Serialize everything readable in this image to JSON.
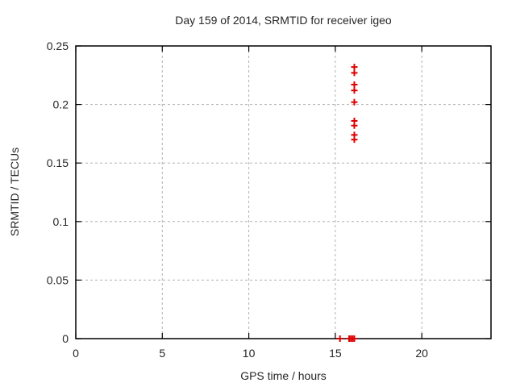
{
  "chart_data": {
    "type": "scatter",
    "title": "Day 159 of 2014, SRMTID for receiver igeo",
    "xlabel": "GPS time / hours",
    "ylabel": "SRMTID / TECUs",
    "xlim": [
      0,
      24
    ],
    "ylim": [
      0,
      0.25
    ],
    "xticks": [
      0,
      5,
      10,
      15,
      20
    ],
    "xtick_labels": [
      "0",
      "5",
      "10",
      "15",
      "20"
    ],
    "yticks": [
      0,
      0.05,
      0.1,
      0.15,
      0.2,
      0.25
    ],
    "ytick_labels": [
      "0",
      "0.05",
      "0.1",
      "0.15",
      "0.2",
      "0.25"
    ],
    "grid": true,
    "legend_position": "none",
    "marker": "plus",
    "marker_color": "#dd0000",
    "grid_color": "#b0b0b0",
    "border_color": "#000000",
    "series": [
      {
        "name": "SRMTID",
        "points": [
          [
            16.1,
            0.232
          ],
          [
            16.1,
            0.227
          ],
          [
            16.1,
            0.217
          ],
          [
            16.1,
            0.212
          ],
          [
            16.1,
            0.202
          ],
          [
            16.1,
            0.186
          ],
          [
            16.1,
            0.182
          ],
          [
            16.1,
            0.174
          ],
          [
            16.1,
            0.17
          ],
          [
            15.27,
            0
          ],
          [
            15.8,
            0
          ],
          [
            15.9,
            0
          ],
          [
            16.0,
            0
          ],
          [
            16.1,
            0
          ]
        ]
      }
    ]
  }
}
